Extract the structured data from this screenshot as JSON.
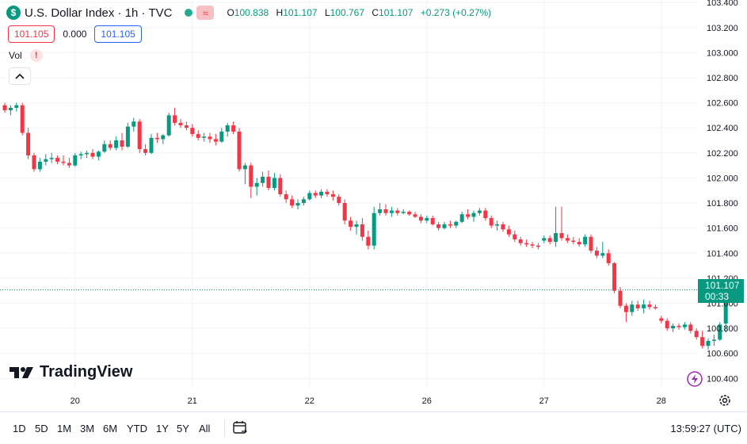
{
  "header": {
    "symbol_badge": "$",
    "title": "U.S. Dollar Index · 1h · TVC",
    "market_icon": "≈",
    "ohlc": {
      "o_label": "O",
      "o": "100.838",
      "h_label": "H",
      "h": "101.107",
      "l_label": "L",
      "l": "100.767",
      "c_label": "C",
      "c": "101.107",
      "change": "+0.273 (+0.27%)"
    },
    "bid": "101.105",
    "spread": "0.000",
    "ask": "101.105"
  },
  "volume": {
    "label": "Vol",
    "warning": "!"
  },
  "logo": "TradingView",
  "bottom_bar": {
    "ranges": [
      "1D",
      "5D",
      "1M",
      "3M",
      "6M",
      "YTD",
      "1Y",
      "5Y",
      "All"
    ],
    "clock": "13:59:27 (UTC)"
  },
  "colors": {
    "up": "#089981",
    "down": "#f23645",
    "grid": "#f0f3fa",
    "text": "#131722",
    "accent": "#2962ff"
  },
  "chart_data": {
    "type": "candlestick",
    "y_ticks": [
      "103.400",
      "103.200",
      "103.000",
      "102.800",
      "102.600",
      "102.400",
      "102.200",
      "102.000",
      "101.800",
      "101.600",
      "101.400",
      "101.200",
      "101.000",
      "100.800",
      "100.600",
      "100.400"
    ],
    "ylim": [
      100.32,
      103.42
    ],
    "x_ticks": [
      {
        "label": "20",
        "index": 12
      },
      {
        "label": "21",
        "index": 32
      },
      {
        "label": "22",
        "index": 52
      },
      {
        "label": "26",
        "index": 72
      },
      {
        "label": "27",
        "index": 92
      },
      {
        "label": "28",
        "index": 112
      }
    ],
    "last_price": "101.107",
    "countdown": "00:33",
    "candles": [
      [
        102.58,
        102.6,
        102.52,
        102.54
      ],
      [
        102.54,
        102.58,
        102.5,
        102.56
      ],
      [
        102.56,
        102.6,
        102.53,
        102.58
      ],
      [
        102.58,
        102.6,
        102.34,
        102.36
      ],
      [
        102.36,
        102.4,
        102.15,
        102.18
      ],
      [
        102.18,
        102.2,
        102.05,
        102.07
      ],
      [
        102.07,
        102.16,
        102.05,
        102.13
      ],
      [
        102.13,
        102.19,
        102.1,
        102.15
      ],
      [
        102.15,
        102.2,
        102.12,
        102.16
      ],
      [
        102.16,
        102.18,
        102.11,
        102.13
      ],
      [
        102.13,
        102.18,
        102.1,
        102.12
      ],
      [
        102.12,
        102.16,
        102.08,
        102.1
      ],
      [
        102.1,
        102.2,
        102.09,
        102.18
      ],
      [
        102.18,
        102.21,
        102.15,
        102.19
      ],
      [
        102.19,
        102.22,
        102.16,
        102.2
      ],
      [
        102.2,
        102.23,
        102.15,
        102.17
      ],
      [
        102.17,
        102.22,
        102.14,
        102.21
      ],
      [
        102.21,
        102.3,
        102.2,
        102.27
      ],
      [
        102.27,
        102.3,
        102.22,
        102.24
      ],
      [
        102.24,
        102.33,
        102.22,
        102.3
      ],
      [
        102.3,
        102.36,
        102.22,
        102.25
      ],
      [
        102.25,
        102.44,
        102.24,
        102.41
      ],
      [
        102.41,
        102.48,
        102.37,
        102.45
      ],
      [
        102.45,
        102.47,
        102.2,
        102.23
      ],
      [
        102.23,
        102.27,
        102.18,
        102.2
      ],
      [
        102.2,
        102.35,
        102.19,
        102.32
      ],
      [
        102.32,
        102.36,
        102.28,
        102.31
      ],
      [
        102.31,
        102.35,
        102.27,
        102.34
      ],
      [
        102.34,
        102.52,
        102.33,
        102.5
      ],
      [
        102.5,
        102.56,
        102.42,
        102.44
      ],
      [
        102.44,
        102.47,
        102.4,
        102.42
      ],
      [
        102.42,
        102.45,
        102.38,
        102.4
      ],
      [
        102.4,
        102.43,
        102.33,
        102.35
      ],
      [
        102.35,
        102.38,
        102.3,
        102.32
      ],
      [
        102.32,
        102.36,
        102.29,
        102.33
      ],
      [
        102.33,
        102.36,
        102.28,
        102.31
      ],
      [
        102.31,
        102.35,
        102.26,
        102.29
      ],
      [
        102.29,
        102.4,
        102.28,
        102.37
      ],
      [
        102.37,
        102.44,
        102.33,
        102.42
      ],
      [
        102.42,
        102.45,
        102.35,
        102.37
      ],
      [
        102.37,
        102.4,
        102.05,
        102.07
      ],
      [
        102.07,
        102.12,
        101.95,
        102.1
      ],
      [
        102.1,
        102.12,
        101.84,
        101.93
      ],
      [
        101.93,
        102.0,
        101.86,
        101.96
      ],
      [
        101.96,
        102.05,
        101.93,
        102.01
      ],
      [
        102.01,
        102.06,
        101.9,
        101.92
      ],
      [
        101.92,
        102.04,
        101.9,
        102.0
      ],
      [
        102.0,
        102.03,
        101.85,
        101.87
      ],
      [
        101.87,
        101.9,
        101.8,
        101.83
      ],
      [
        101.83,
        101.86,
        101.76,
        101.78
      ],
      [
        101.78,
        101.83,
        101.75,
        101.8
      ],
      [
        101.8,
        101.85,
        101.78,
        101.83
      ],
      [
        101.83,
        101.9,
        101.82,
        101.88
      ],
      [
        101.88,
        101.9,
        101.84,
        101.86
      ],
      [
        101.86,
        101.91,
        101.84,
        101.89
      ],
      [
        101.89,
        101.91,
        101.85,
        101.87
      ],
      [
        101.87,
        101.9,
        101.82,
        101.85
      ],
      [
        101.85,
        101.87,
        101.78,
        101.8
      ],
      [
        101.8,
        101.83,
        101.63,
        101.66
      ],
      [
        101.66,
        101.69,
        101.58,
        101.61
      ],
      [
        101.61,
        101.66,
        101.55,
        101.63
      ],
      [
        101.63,
        101.68,
        101.5,
        101.53
      ],
      [
        101.53,
        101.58,
        101.43,
        101.46
      ],
      [
        101.46,
        101.77,
        101.43,
        101.72
      ],
      [
        101.72,
        101.8,
        101.7,
        101.75
      ],
      [
        101.75,
        101.79,
        101.7,
        101.72
      ],
      [
        101.72,
        101.77,
        101.69,
        101.74
      ],
      [
        101.74,
        101.76,
        101.7,
        101.72
      ],
      [
        101.72,
        101.75,
        101.71,
        101.73
      ],
      [
        101.73,
        101.74,
        101.7,
        101.71
      ],
      [
        101.71,
        101.73,
        101.68,
        101.69
      ],
      [
        101.69,
        101.71,
        101.64,
        101.66
      ],
      [
        101.66,
        101.7,
        101.64,
        101.68
      ],
      [
        101.68,
        101.7,
        101.62,
        101.63
      ],
      [
        101.63,
        101.65,
        101.58,
        101.6
      ],
      [
        101.6,
        101.65,
        101.59,
        101.63
      ],
      [
        101.63,
        101.66,
        101.6,
        101.62
      ],
      [
        101.62,
        101.66,
        101.6,
        101.65
      ],
      [
        101.65,
        101.73,
        101.64,
        101.71
      ],
      [
        101.71,
        101.75,
        101.67,
        101.69
      ],
      [
        101.69,
        101.74,
        101.65,
        101.72
      ],
      [
        101.72,
        101.76,
        101.7,
        101.74
      ],
      [
        101.74,
        101.76,
        101.66,
        101.68
      ],
      [
        101.68,
        101.7,
        101.6,
        101.62
      ],
      [
        101.62,
        101.66,
        101.58,
        101.63
      ],
      [
        101.63,
        101.65,
        101.57,
        101.59
      ],
      [
        101.59,
        101.62,
        101.53,
        101.55
      ],
      [
        101.55,
        101.58,
        101.49,
        101.51
      ],
      [
        101.51,
        101.53,
        101.46,
        101.48
      ],
      [
        101.48,
        101.51,
        101.45,
        101.47
      ],
      [
        101.47,
        101.49,
        101.44,
        101.46
      ],
      [
        101.46,
        101.48,
        101.43,
        101.45
      ],
      [
        101.5,
        101.54,
        101.48,
        101.52
      ],
      [
        101.52,
        101.54,
        101.47,
        101.49
      ],
      [
        101.49,
        101.77,
        101.45,
        101.56
      ],
      [
        101.56,
        101.77,
        101.5,
        101.52
      ],
      [
        101.52,
        101.55,
        101.48,
        101.5
      ],
      [
        101.5,
        101.53,
        101.47,
        101.49
      ],
      [
        101.49,
        101.52,
        101.45,
        101.47
      ],
      [
        101.47,
        101.55,
        101.45,
        101.53
      ],
      [
        101.53,
        101.55,
        101.4,
        101.42
      ],
      [
        101.42,
        101.45,
        101.36,
        101.38
      ],
      [
        101.38,
        101.49,
        101.36,
        101.4
      ],
      [
        101.4,
        101.43,
        101.3,
        101.32
      ],
      [
        101.32,
        101.33,
        101.08,
        101.1
      ],
      [
        101.1,
        101.13,
        100.96,
        100.98
      ],
      [
        100.98,
        101.0,
        100.85,
        100.93
      ],
      [
        100.93,
        101.02,
        100.9,
        100.99
      ],
      [
        100.99,
        101.02,
        100.94,
        100.96
      ],
      [
        100.96,
        101.03,
        100.92,
        100.99
      ],
      [
        100.99,
        101.02,
        100.95,
        100.97
      ],
      [
        100.97,
        100.99,
        100.95,
        100.96
      ],
      [
        100.88,
        100.9,
        100.84,
        100.86
      ],
      [
        100.86,
        100.88,
        100.78,
        100.8
      ],
      [
        100.8,
        100.84,
        100.77,
        100.82
      ],
      [
        100.82,
        100.84,
        100.79,
        100.81
      ],
      [
        100.81,
        100.85,
        100.79,
        100.83
      ],
      [
        100.83,
        100.85,
        100.76,
        100.78
      ],
      [
        100.78,
        100.8,
        100.71,
        100.73
      ],
      [
        100.73,
        100.78,
        100.64,
        100.66
      ],
      [
        100.66,
        100.72,
        100.63,
        100.7
      ],
      [
        100.7,
        100.75,
        100.66,
        100.71
      ],
      [
        100.71,
        100.85,
        100.7,
        100.83
      ],
      [
        100.838,
        101.107,
        100.767,
        101.107
      ]
    ]
  }
}
